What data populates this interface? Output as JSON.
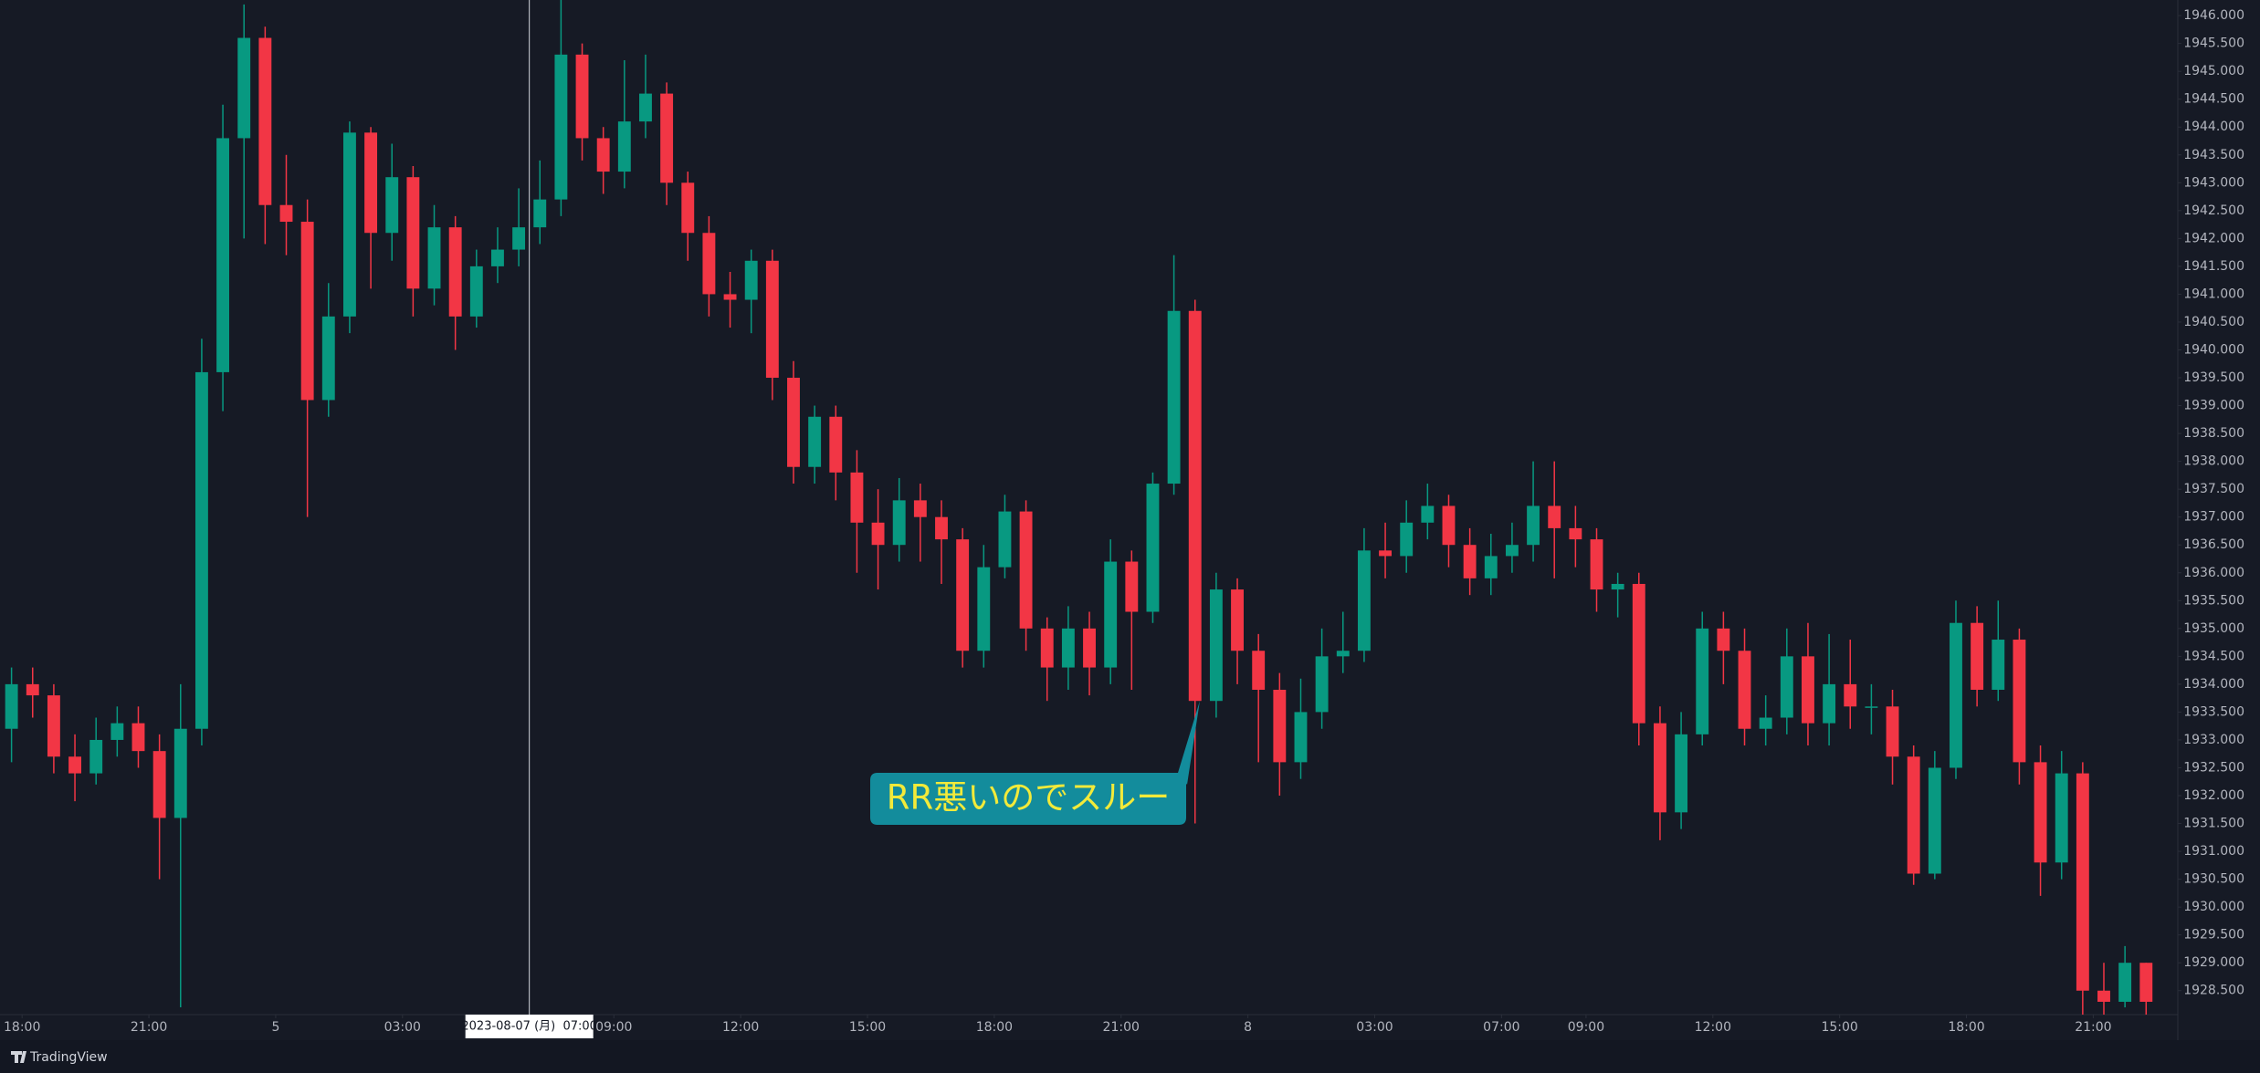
{
  "chart_data": {
    "type": "candlestick",
    "brand": "TradingView",
    "up_color": "#089981",
    "down_color": "#f23645",
    "annotation": "RR悪いのでスルー",
    "crosshair": {
      "value": 24.5,
      "label": "2023-08-07 (月)  07:00"
    },
    "xlim": [
      -0.545,
      102.5
    ],
    "ylim": [
      1928.07,
      1946.28
    ],
    "xticks": [
      {
        "value": 0.5,
        "label": "18:00"
      },
      {
        "value": 6.5,
        "label": "21:00"
      },
      {
        "value": 12.5,
        "label": "5"
      },
      {
        "value": 18.5,
        "label": "03:00"
      },
      {
        "value": 28.5,
        "label": "09:00"
      },
      {
        "value": 34.5,
        "label": "12:00"
      },
      {
        "value": 40.5,
        "label": "15:00"
      },
      {
        "value": 46.5,
        "label": "18:00"
      },
      {
        "value": 52.5,
        "label": "21:00"
      },
      {
        "value": 58.5,
        "label": "8"
      },
      {
        "value": 64.5,
        "label": "03:00"
      },
      {
        "value": 70.5,
        "label": "07:00"
      },
      {
        "value": 74.5,
        "label": "09:00"
      },
      {
        "value": 80.5,
        "label": "12:00"
      },
      {
        "value": 86.5,
        "label": "15:00"
      },
      {
        "value": 92.5,
        "label": "18:00"
      },
      {
        "value": 98.5,
        "label": "21:00"
      }
    ],
    "yticks": [
      {
        "value": 1928.5,
        "label": "1928.500"
      },
      {
        "value": 1929,
        "label": "1929.000"
      },
      {
        "value": 1929.5,
        "label": "1929.500"
      },
      {
        "value": 1930,
        "label": "1930.000"
      },
      {
        "value": 1930.5,
        "label": "1930.500"
      },
      {
        "value": 1931,
        "label": "1931.000"
      },
      {
        "value": 1931.5,
        "label": "1931.500"
      },
      {
        "value": 1932,
        "label": "1932.000"
      },
      {
        "value": 1932.5,
        "label": "1932.500"
      },
      {
        "value": 1933,
        "label": "1933.000"
      },
      {
        "value": 1933.5,
        "label": "1933.500"
      },
      {
        "value": 1934,
        "label": "1934.000"
      },
      {
        "value": 1934.5,
        "label": "1934.500"
      },
      {
        "value": 1935,
        "label": "1935.000"
      },
      {
        "value": 1935.5,
        "label": "1935.500"
      },
      {
        "value": 1936,
        "label": "1936.000"
      },
      {
        "value": 1936.5,
        "label": "1936.500"
      },
      {
        "value": 1937,
        "label": "1937.000"
      },
      {
        "value": 1937.5,
        "label": "1937.500"
      },
      {
        "value": 1938,
        "label": "1938.000"
      },
      {
        "value": 1938.5,
        "label": "1938.500"
      },
      {
        "value": 1939,
        "label": "1939.000"
      },
      {
        "value": 1939.5,
        "label": "1939.500"
      },
      {
        "value": 1940,
        "label": "1940.000"
      },
      {
        "value": 1940.5,
        "label": "1940.500"
      },
      {
        "value": 1941,
        "label": "1941.000"
      },
      {
        "value": 1941.5,
        "label": "1941.500"
      },
      {
        "value": 1942,
        "label": "1942.000"
      },
      {
        "value": 1942.5,
        "label": "1942.500"
      },
      {
        "value": 1943,
        "label": "1943.000"
      },
      {
        "value": 1943.5,
        "label": "1943.500"
      },
      {
        "value": 1944,
        "label": "1944.000"
      },
      {
        "value": 1944.5,
        "label": "1944.500"
      },
      {
        "value": 1945,
        "label": "1945.000"
      },
      {
        "value": 1945.5,
        "label": "1945.500"
      },
      {
        "value": 1946,
        "label": "1946.000"
      }
    ],
    "open": [
      1933.2,
      1934.0,
      1933.8,
      1932.7,
      1932.4,
      1933.0,
      1933.3,
      1932.8,
      1931.6,
      1933.2,
      1939.6,
      1943.8,
      1945.6,
      1942.6,
      1942.3,
      1939.1,
      1940.6,
      1943.9,
      1942.1,
      1943.1,
      1941.1,
      1942.2,
      1940.6,
      1941.5,
      1941.8,
      1942.2,
      1942.7,
      1945.3,
      1943.8,
      1943.2,
      1944.1,
      1944.6,
      1943.0,
      1942.1,
      1941.0,
      1940.9,
      1941.6,
      1939.5,
      1937.9,
      1938.8,
      1937.8,
      1936.9,
      1936.5,
      1937.3,
      1937.0,
      1936.6,
      1934.6,
      1936.1,
      1937.1,
      1935.0,
      1934.3,
      1935.0,
      1934.3,
      1936.2,
      1935.3,
      1937.6,
      1940.7,
      1933.7,
      1935.7,
      1934.6,
      1933.9,
      1932.6,
      1933.5,
      1934.5,
      1934.6,
      1936.4,
      1936.3,
      1936.9,
      1937.2,
      1936.5,
      1935.9,
      1936.3,
      1936.5,
      1937.2,
      1936.8,
      1936.6,
      1935.7,
      1935.8,
      1933.3,
      1931.7,
      1933.1,
      1935.0,
      1934.6,
      1933.2,
      1933.4,
      1934.5,
      1933.3,
      1934.0,
      1933.6,
      1933.6,
      1932.7,
      1930.6,
      1932.5,
      1935.1,
      1933.9,
      1934.8,
      1932.6,
      1930.8,
      1932.4,
      1928.5,
      1928.3,
      1929.0
    ],
    "high": [
      1934.3,
      1934.3,
      1934.0,
      1933.1,
      1933.4,
      1933.6,
      1933.6,
      1933.1,
      1934.0,
      1940.2,
      1944.4,
      1946.2,
      1945.8,
      1943.5,
      1942.7,
      1941.2,
      1944.1,
      1944.0,
      1943.7,
      1943.3,
      1942.6,
      1942.4,
      1941.8,
      1942.2,
      1942.9,
      1943.4,
      1946.3,
      1945.5,
      1944.0,
      1945.2,
      1945.3,
      1944.8,
      1943.2,
      1942.4,
      1941.4,
      1941.8,
      1941.8,
      1939.8,
      1939.0,
      1939.0,
      1938.2,
      1937.5,
      1937.7,
      1937.6,
      1937.3,
      1936.8,
      1936.5,
      1937.4,
      1937.3,
      1935.2,
      1935.4,
      1935.3,
      1936.6,
      1936.4,
      1937.8,
      1941.7,
      1940.9,
      1936.0,
      1935.9,
      1934.9,
      1934.2,
      1934.1,
      1935.0,
      1935.3,
      1936.8,
      1936.9,
      1937.3,
      1937.6,
      1937.4,
      1936.8,
      1936.7,
      1936.9,
      1938.0,
      1938.0,
      1937.2,
      1936.8,
      1936.0,
      1936.0,
      1933.6,
      1933.5,
      1935.3,
      1935.3,
      1935.0,
      1933.8,
      1935.0,
      1935.1,
      1934.9,
      1934.8,
      1934.0,
      1933.9,
      1932.9,
      1932.8,
      1935.5,
      1935.4,
      1935.5,
      1935.0,
      1932.9,
      1932.8,
      1932.6,
      1929.0,
      1929.3,
      1929.0
    ],
    "low": [
      1932.6,
      1933.4,
      1932.4,
      1931.9,
      1932.2,
      1932.7,
      1932.5,
      1930.5,
      1928.2,
      1932.9,
      1938.9,
      1942.0,
      1941.9,
      1941.7,
      1937.0,
      1938.8,
      1940.3,
      1941.1,
      1941.6,
      1940.6,
      1940.8,
      1940.0,
      1940.4,
      1941.2,
      1941.5,
      1941.9,
      1942.4,
      1943.4,
      1942.8,
      1942.9,
      1943.8,
      1942.6,
      1941.6,
      1940.6,
      1940.4,
      1940.3,
      1939.1,
      1937.6,
      1937.6,
      1937.3,
      1936.0,
      1935.7,
      1936.2,
      1936.2,
      1935.8,
      1934.3,
      1934.3,
      1935.9,
      1934.6,
      1933.7,
      1933.9,
      1933.8,
      1934.0,
      1933.9,
      1935.1,
      1937.4,
      1931.5,
      1933.4,
      1934.0,
      1932.6,
      1932.0,
      1932.3,
      1933.2,
      1934.2,
      1934.4,
      1935.9,
      1936.0,
      1936.6,
      1936.1,
      1935.6,
      1935.6,
      1936.0,
      1936.2,
      1935.9,
      1936.1,
      1935.3,
      1935.2,
      1932.9,
      1931.2,
      1931.4,
      1932.9,
      1934.0,
      1932.9,
      1932.9,
      1933.1,
      1932.9,
      1932.9,
      1933.2,
      1933.1,
      1932.2,
      1930.4,
      1930.5,
      1932.3,
      1933.6,
      1933.7,
      1932.2,
      1930.2,
      1930.5,
      1928.0,
      1927.9,
      1928.2,
      1928.0
    ],
    "close": [
      1934.0,
      1933.8,
      1932.7,
      1932.4,
      1933.0,
      1933.3,
      1932.8,
      1931.6,
      1933.2,
      1939.6,
      1943.8,
      1945.6,
      1942.6,
      1942.3,
      1939.1,
      1940.6,
      1943.9,
      1942.1,
      1943.1,
      1941.1,
      1942.2,
      1940.6,
      1941.5,
      1941.8,
      1942.2,
      1942.7,
      1945.3,
      1943.8,
      1943.2,
      1944.1,
      1944.6,
      1943.0,
      1942.1,
      1941.0,
      1940.9,
      1941.6,
      1939.5,
      1937.9,
      1938.8,
      1937.8,
      1936.9,
      1936.5,
      1937.3,
      1937.0,
      1936.6,
      1934.6,
      1936.1,
      1937.1,
      1935.0,
      1934.3,
      1935.0,
      1934.3,
      1936.2,
      1935.3,
      1937.6,
      1940.7,
      1933.7,
      1935.7,
      1934.6,
      1933.9,
      1932.6,
      1933.5,
      1934.5,
      1934.6,
      1936.4,
      1936.3,
      1936.9,
      1937.2,
      1936.5,
      1935.9,
      1936.3,
      1936.5,
      1937.2,
      1936.8,
      1936.6,
      1935.7,
      1935.8,
      1933.3,
      1931.7,
      1933.1,
      1935.0,
      1934.6,
      1933.2,
      1933.4,
      1934.5,
      1933.3,
      1934.0,
      1933.6,
      1933.6,
      1932.7,
      1930.6,
      1932.5,
      1935.1,
      1933.9,
      1934.8,
      1932.6,
      1930.8,
      1932.4,
      1928.5,
      1928.3,
      1929.0,
      1928.3
    ]
  }
}
